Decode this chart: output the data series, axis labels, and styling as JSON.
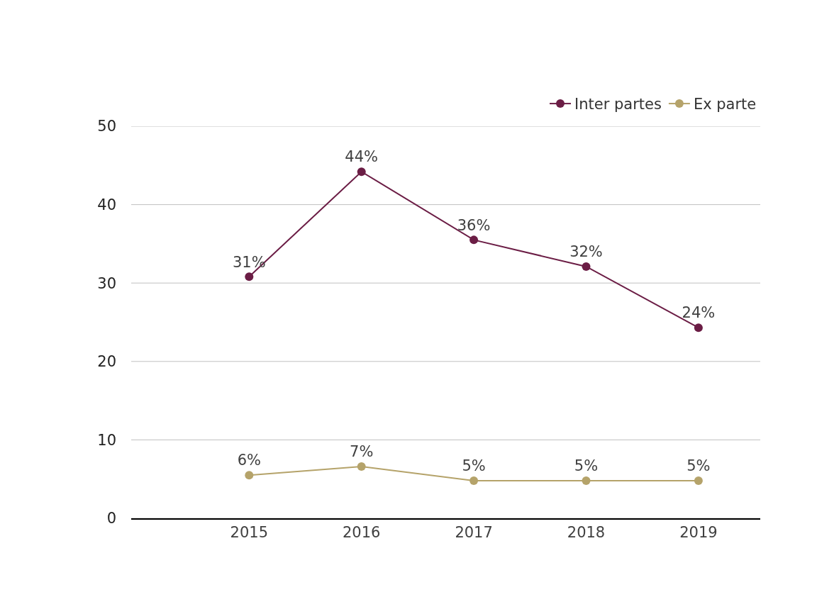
{
  "chart_data": {
    "type": "line",
    "categories": [
      "2015",
      "2016",
      "2017",
      "2018",
      "2019"
    ],
    "series": [
      {
        "name": "Inter partes",
        "color": "#6b1d45",
        "values": [
          30.8,
          44.2,
          35.5,
          32.1,
          24.3
        ],
        "value_labels": [
          "31%",
          "44%",
          "36%",
          "32%",
          "24%"
        ]
      },
      {
        "name": "Ex parte",
        "color": "#b5a36a",
        "values": [
          5.5,
          6.6,
          4.8,
          4.8,
          4.8
        ],
        "value_labels": [
          "6%",
          "7%",
          "5%",
          "5%",
          "5%"
        ]
      }
    ],
    "ylim": [
      0,
      50
    ],
    "yticks": [
      0,
      10,
      20,
      30,
      40,
      50
    ],
    "grid": "y",
    "legend": "top right",
    "marker": "circle",
    "line_style": "solid"
  }
}
